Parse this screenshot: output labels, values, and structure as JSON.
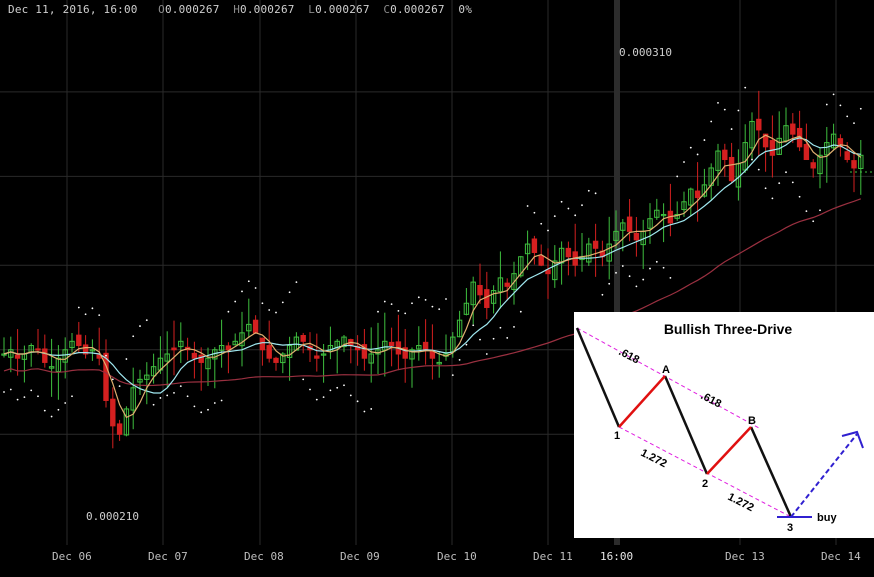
{
  "header": {
    "date": "Dec 11, 2016, 16:00",
    "o_label": "O",
    "o_value": "0.000267",
    "h_label": "H",
    "h_value": "0.000267",
    "l_label": "L",
    "l_value": "0.000267",
    "c_label": "C",
    "c_value": "0.000267",
    "change": "0%"
  },
  "chart_data": [
    {
      "type": "candlestick",
      "x_ticks": [
        "Dec 06",
        "Dec 07",
        "Dec 08",
        "Dec 09",
        "Dec 10",
        "Dec 11",
        "16:00",
        "Dec 13",
        "Dec 14"
      ],
      "annotations": {
        "high": "0.000310",
        "low": "0.000210"
      },
      "ylim": [
        0.000195,
        0.000318
      ],
      "series": [
        {
          "name": "price",
          "close": [
            0.000239,
            0.00024,
            0.000238,
            0.000239,
            0.000241,
            0.00024,
            0.000237,
            0.000236,
            0.000238,
            0.00024,
            0.000242,
            0.000241,
            0.000239,
            0.00024,
            0.000238,
            0.000228,
            0.000222,
            0.00022,
            0.000226,
            0.000231,
            0.000233,
            0.000234,
            0.000236,
            0.000238,
            0.000239,
            0.00024,
            0.000242,
            0.00024,
            0.000238,
            0.000237,
            0.000238,
            0.00024,
            0.000241,
            0.00024,
            0.000242,
            0.000244,
            0.000246,
            0.000244,
            0.00024,
            0.000238,
            0.000237,
            0.000239,
            0.000241,
            0.000243,
            0.000242,
            0.00024,
            0.000238,
            0.000239,
            0.000241,
            0.000242,
            0.000243,
            0.000241,
            0.00024,
            0.000238,
            0.000239,
            0.00024,
            0.000242,
            0.000241,
            0.000239,
            0.000238,
            0.00024,
            0.000241,
            0.00024,
            0.000238,
            0.000237,
            0.000239,
            0.000243,
            0.000247,
            0.000251,
            0.000256,
            0.000253,
            0.00025,
            0.000254,
            0.000257,
            0.000255,
            0.000258,
            0.000262,
            0.000265,
            0.000263,
            0.00026,
            0.000258,
            0.000261,
            0.000264,
            0.000262,
            0.00026,
            0.000262,
            0.000265,
            0.000264,
            0.000262,
            0.000265,
            0.000268,
            0.00027,
            0.000268,
            0.000266,
            0.000268,
            0.000271,
            0.000273,
            0.000272,
            0.00027,
            0.000272,
            0.000275,
            0.000278,
            0.000276,
            0.000279,
            0.000283,
            0.000287,
            0.000285,
            0.00028,
            0.000284,
            0.000289,
            0.000294,
            0.000292,
            0.000288,
            0.000286,
            0.00029,
            0.000293,
            0.000291,
            0.000288,
            0.000285,
            0.000283,
            0.000286,
            0.000289,
            0.000291,
            0.000288,
            0.000285,
            0.000283,
            0.000286
          ]
        },
        {
          "name": "ma_fast"
        },
        {
          "name": "ma_slow"
        },
        {
          "name": "ma_long"
        },
        {
          "name": "sar"
        }
      ],
      "colors": {
        "up": "#3fbf3f",
        "down": "#d42020",
        "ma_fast": "#e0b070",
        "ma_slow": "#a0e8f0",
        "ma_long": "#9a3040",
        "sar": "#ffffff",
        "grid": "#2a2a2a"
      }
    },
    {
      "type": "diagram",
      "title": "Bullish Three-Drive",
      "labels": [
        "1",
        "A",
        "2",
        "B",
        "3",
        "buy"
      ],
      "ratios": [
        ".618",
        ".618",
        "1.272",
        "1.272"
      ],
      "colors": {
        "drive": "#111111",
        "retrace": "#e01010",
        "guide": "#e020e0",
        "buy": "#3020d0"
      }
    }
  ]
}
